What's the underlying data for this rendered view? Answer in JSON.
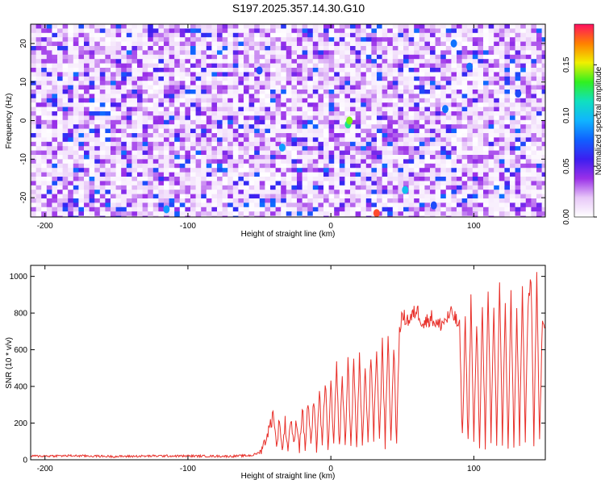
{
  "title": "S197.2025.357.14.30.G10",
  "chart_data": [
    {
      "type": "heatmap",
      "xlabel": "Height of straight line (km)",
      "ylabel": "Frequency (Hz)",
      "xlim": [
        -210,
        150
      ],
      "ylim": [
        -25,
        25
      ],
      "xticks": [
        -200,
        -100,
        0,
        100
      ],
      "xticklabels": [
        "-200",
        "-100",
        "0",
        "100"
      ],
      "yticks": [
        -20,
        -10,
        0,
        10,
        20
      ],
      "yticklabels": [
        "-20",
        "-10",
        "0",
        "10",
        "20"
      ],
      "colorbar": {
        "label": "Normalized spectral amplitude",
        "range": [
          0,
          0.19
        ],
        "ticks": [
          0,
          0.05,
          0.1,
          0.15
        ],
        "ticklabels": [
          "0.00",
          "0.05",
          "0.10",
          "0.15"
        ],
        "colormap": [
          "#ffffff",
          "#e8c8f8",
          "#9a30e8",
          "#3c1ef0",
          "#1060ff",
          "#10b4ff",
          "#10e0c0",
          "#30f020",
          "#f0f000",
          "#ff8000",
          "#ff1060"
        ]
      },
      "hotspots": [
        {
          "x": 12,
          "y": -1,
          "value": 0.12
        },
        {
          "x": 13,
          "y": 0,
          "value": 0.14
        },
        {
          "x": 32,
          "y": -24,
          "value": 0.18
        },
        {
          "x": 52,
          "y": -18,
          "value": 0.1
        },
        {
          "x": -115,
          "y": -23,
          "value": 0.09
        },
        {
          "x": -34,
          "y": -7,
          "value": 0.09
        },
        {
          "x": 80,
          "y": 3,
          "value": 0.08
        },
        {
          "x": 86,
          "y": 20,
          "value": 0.08
        },
        {
          "x": 97,
          "y": 14,
          "value": 0.08
        },
        {
          "x": -50,
          "y": 13,
          "value": 0.07
        },
        {
          "x": 72,
          "y": -22,
          "value": 0.07
        },
        {
          "x": 131,
          "y": 7,
          "value": 0.07
        }
      ]
    },
    {
      "type": "line",
      "xlabel": "Height of straight line (km)",
      "ylabel": "SNR (10 * v/v)",
      "xlim": [
        -210,
        150
      ],
      "ylim": [
        0,
        1060
      ],
      "xticks": [
        -200,
        -100,
        0,
        100
      ],
      "xticklabels": [
        "-200",
        "-100",
        "0",
        "100"
      ],
      "yticks": [
        0,
        200,
        400,
        600,
        800,
        1000
      ],
      "yticklabels": [
        "0",
        "200",
        "400",
        "600",
        "800",
        "1000"
      ],
      "color": "#e8302a",
      "series": [
        {
          "name": "",
          "x": [
            -210,
            -180,
            -150,
            -120,
            -90,
            -70,
            -55,
            -50,
            -46,
            -44,
            -40,
            -38,
            -36,
            -34,
            -32,
            -30,
            -28,
            -26,
            -24,
            -22,
            -20,
            -18,
            -16,
            -14,
            -12,
            -10,
            -8,
            -6,
            -4,
            -2,
            0,
            2,
            4,
            6,
            8,
            10,
            12,
            14,
            16,
            18,
            20,
            22,
            24,
            26,
            28,
            30,
            32,
            34,
            36,
            38,
            40,
            42,
            44,
            46,
            48,
            50,
            55,
            60,
            65,
            70,
            75,
            80,
            85,
            90,
            92,
            94,
            96,
            98,
            100,
            102,
            104,
            106,
            108,
            110,
            112,
            114,
            116,
            118,
            120,
            122,
            124,
            126,
            128,
            130,
            132,
            134,
            136,
            138,
            140,
            142,
            144,
            146,
            148,
            150
          ],
          "y": [
            20,
            22,
            18,
            21,
            20,
            19,
            24,
            40,
            100,
            150,
            260,
            60,
            230,
            50,
            200,
            50,
            240,
            70,
            230,
            60,
            280,
            60,
            320,
            80,
            300,
            60,
            380,
            60,
            440,
            60,
            400,
            80,
            500,
            60,
            460,
            70,
            540,
            70,
            520,
            80,
            560,
            70,
            500,
            90,
            560,
            100,
            620,
            90,
            660,
            80,
            700,
            90,
            640,
            80,
            720,
            780,
            760,
            820,
            740,
            780,
            730,
            760,
            800,
            720,
            120,
            780,
            90,
            880,
            90,
            750,
            80,
            860,
            80,
            900,
            90,
            840,
            80,
            980,
            90,
            820,
            80,
            900,
            90,
            800,
            100,
            940,
            110,
            850,
            1000,
            100,
            980,
            90,
            800,
            720
          ]
        }
      ]
    }
  ]
}
